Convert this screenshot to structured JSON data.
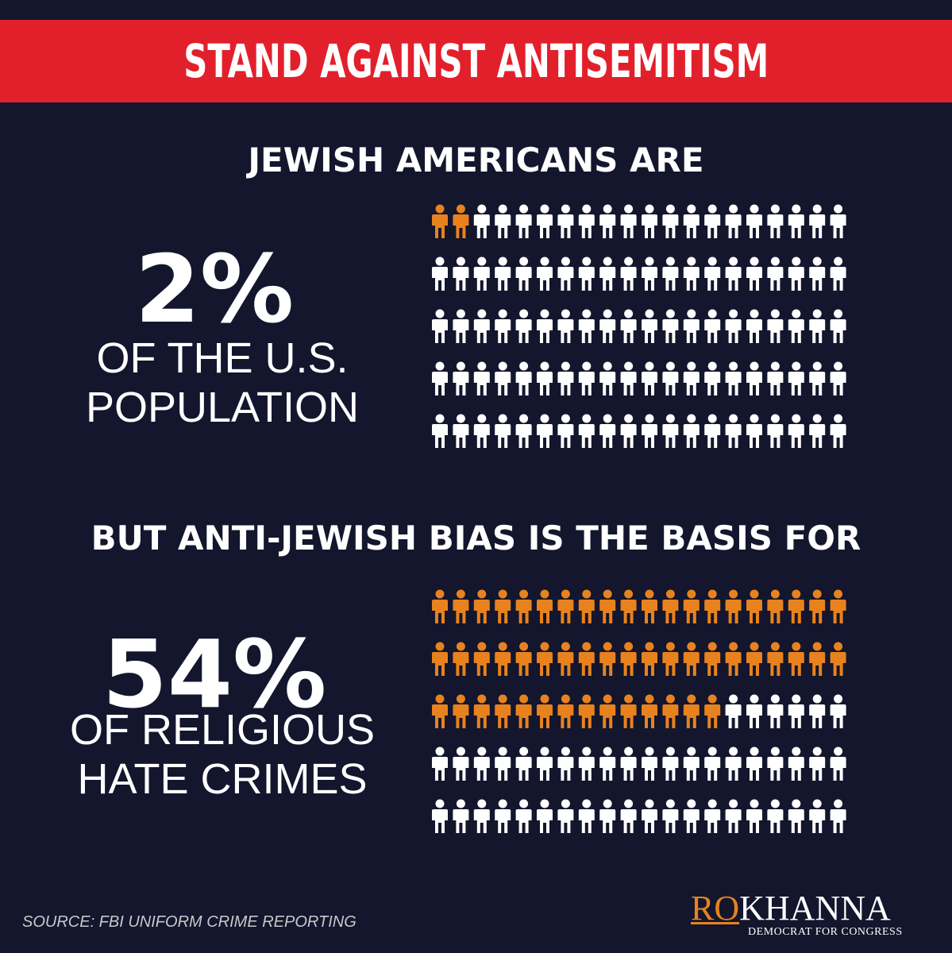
{
  "banner": {
    "title": "STAND AGAINST ANTISEMITISM"
  },
  "section1": {
    "heading": "JEWISH AMERICANS ARE",
    "percent": "2%",
    "subtitle_line1": "OF THE U.S.",
    "subtitle_line2": "POPULATION"
  },
  "section2": {
    "heading": "BUT ANTI-JEWISH BIAS IS THE BASIS FOR",
    "percent": "54%",
    "subtitle_line1": "OF RELIGIOUS",
    "subtitle_line2": "HATE CRIMES"
  },
  "chart_data": [
    {
      "type": "pictograph",
      "total_icons": 100,
      "highlighted_icons": 2,
      "value_percent": 2
    },
    {
      "type": "pictograph",
      "total_icons": 100,
      "highlighted_icons": 54,
      "value_percent": 54
    }
  ],
  "colors": {
    "background": "#13162d",
    "banner": "#e2202c",
    "highlight": "#e8821e",
    "icon": "#ffffff"
  },
  "icons": {
    "person": "person-icon"
  },
  "source": "SOURCE: FBI UNIFORM CRIME REPORTING",
  "logo": {
    "first": "RO",
    "last": "KHANNA",
    "tagline": "DEMOCRAT FOR CONGRESS"
  }
}
